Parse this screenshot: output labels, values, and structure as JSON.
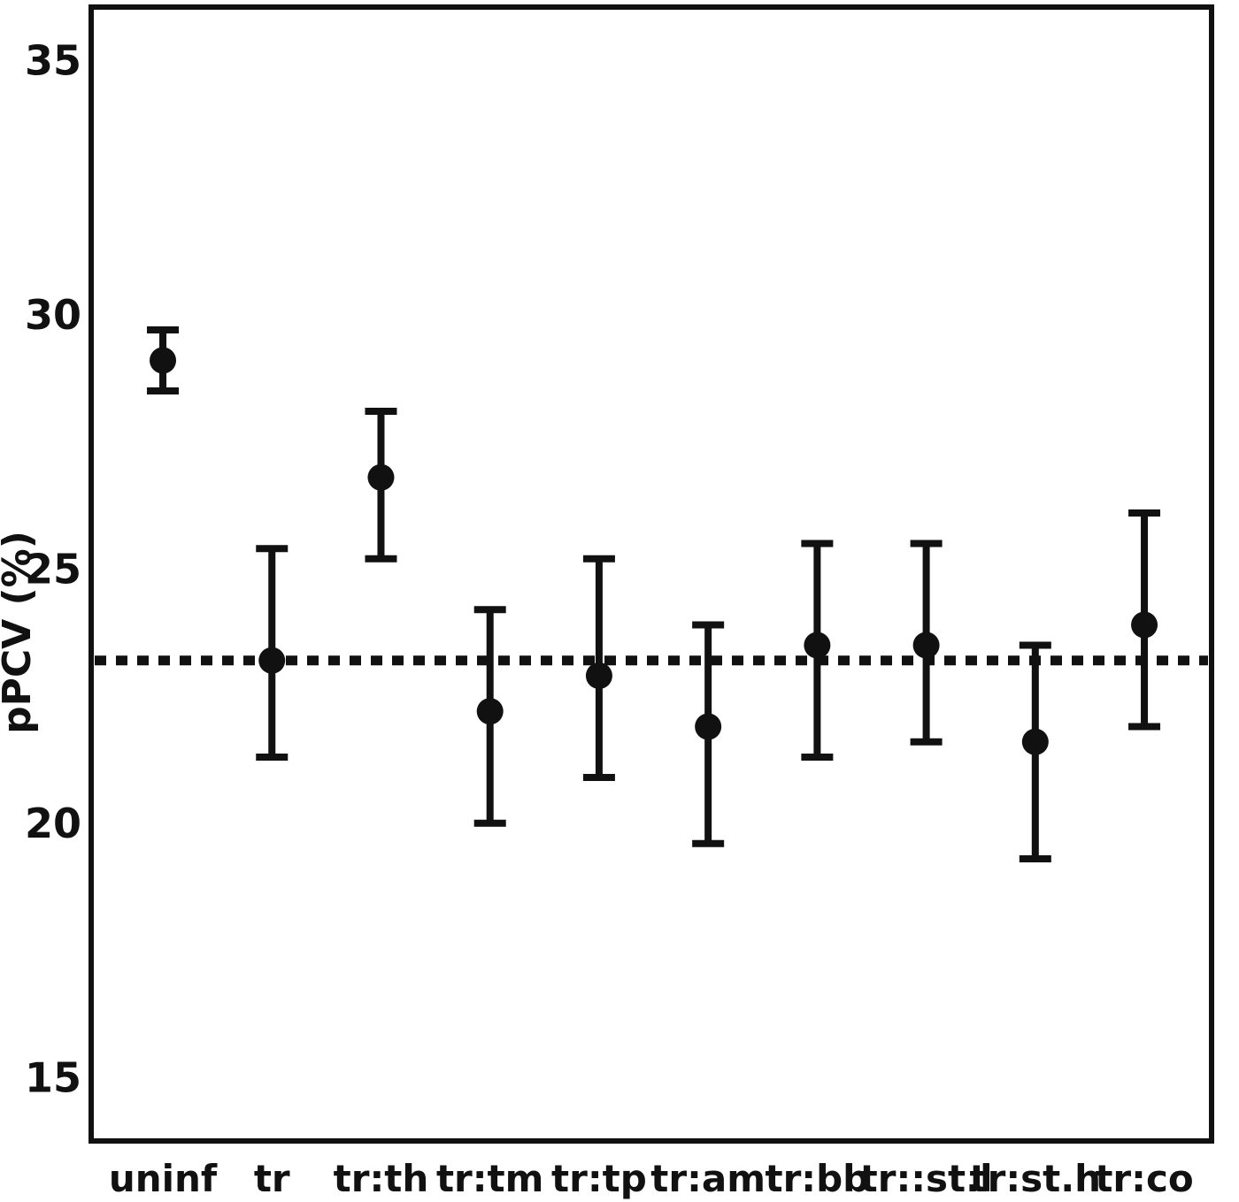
{
  "chart_data": {
    "type": "scatter",
    "title": "",
    "xlabel": "",
    "ylabel": "pPCV (%)",
    "categories": [
      "uninf",
      "tr",
      "tr:th",
      "tr:tm",
      "tr:tp",
      "tr:am",
      "tr:bb",
      "tr::st.l",
      "tr:st.h",
      "tr:co"
    ],
    "points": [
      {
        "category": "uninf",
        "value": 29.1,
        "err_low": 28.5,
        "err_high": 29.7
      },
      {
        "category": "tr",
        "value": 23.2,
        "err_low": 21.3,
        "err_high": 25.4
      },
      {
        "category": "tr:th",
        "value": 26.8,
        "err_low": 25.2,
        "err_high": 28.1
      },
      {
        "category": "tr:tm",
        "value": 22.2,
        "err_low": 20.0,
        "err_high": 24.2
      },
      {
        "category": "tr:tp",
        "value": 22.9,
        "err_low": 20.9,
        "err_high": 25.2
      },
      {
        "category": "tr:am",
        "value": 21.9,
        "err_low": 19.6,
        "err_high": 23.9
      },
      {
        "category": "tr:bb",
        "value": 23.5,
        "err_low": 21.3,
        "err_high": 25.5
      },
      {
        "category": "tr::st.l",
        "value": 23.5,
        "err_low": 21.6,
        "err_high": 25.5
      },
      {
        "category": "tr:st.h",
        "value": 21.6,
        "err_low": 19.3,
        "err_high": 23.5
      },
      {
        "category": "tr:co",
        "value": 23.9,
        "err_low": 21.9,
        "err_high": 26.1
      }
    ],
    "reference_line": {
      "value": 23.2,
      "style": "dotted"
    },
    "ylim": [
      13.7,
      36.1
    ],
    "yticks": [
      15,
      20,
      25,
      30,
      35
    ],
    "grid": false,
    "legend": "none",
    "marker": "filled-circle",
    "colors": {
      "foreground": "#111111",
      "background": "#ffffff"
    }
  }
}
